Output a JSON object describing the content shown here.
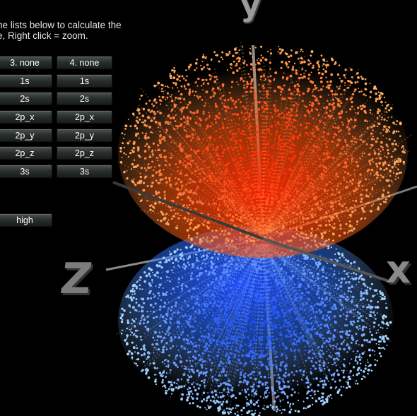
{
  "instructions": {
    "line1": "he lists below to calculate the",
    "line2": "e, Right click = zoom."
  },
  "list3": {
    "header": "3. none",
    "items": [
      "1s",
      "2s",
      "2p_x",
      "2p_y",
      "2p_z",
      "3s"
    ]
  },
  "list4": {
    "header": "4. none",
    "items": [
      "1s",
      "2s",
      "2p_x",
      "2p_y",
      "2p_z",
      "3s"
    ]
  },
  "quality_button": "high",
  "axes": {
    "x": "x",
    "y": "y",
    "z": "Z"
  },
  "colors": {
    "positive_lobe_core": "#ff2a00",
    "positive_lobe_outer": "#ffb060",
    "negative_lobe_core": "#1e50ff",
    "negative_lobe_outer": "#a8d8ff",
    "button_text": "#ffffff"
  }
}
